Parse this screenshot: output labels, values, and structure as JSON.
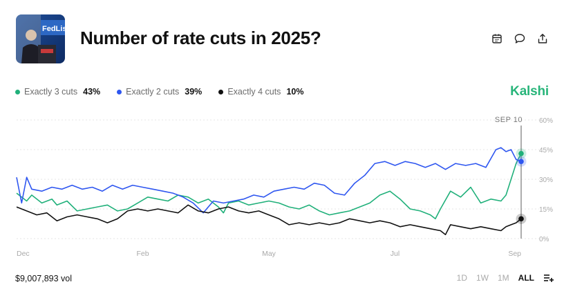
{
  "header": {
    "title": "Number of rate cuts in 2025?",
    "thumbnail_text": "FedListen",
    "actions": [
      {
        "name": "calendar-icon"
      },
      {
        "name": "comment-icon"
      },
      {
        "name": "share-icon"
      }
    ]
  },
  "brand": "Kalshi",
  "colors": {
    "green": "#20b07a",
    "blue": "#2e56f0",
    "black": "#111111",
    "brand": "#28b57a"
  },
  "legend": [
    {
      "name": "Exactly 3 cuts",
      "pct": "43%",
      "color": "#20b07a"
    },
    {
      "name": "Exactly 2 cuts",
      "pct": "39%",
      "color": "#2e56f0"
    },
    {
      "name": "Exactly 4 cuts",
      "pct": "10%",
      "color": "#111111"
    }
  ],
  "footer": {
    "volume": "$9,007,893 vol",
    "ranges": [
      "1D",
      "1W",
      "1M",
      "ALL"
    ],
    "active_range": "ALL"
  },
  "chart_data": {
    "type": "line",
    "date_marker": "SEP 10",
    "x_ticks": [
      "Dec",
      "Feb",
      "May",
      "Jul",
      "Sep"
    ],
    "x_tick_positions": [
      0,
      0.25,
      0.5,
      0.75,
      1.0
    ],
    "yticks": [
      "60%",
      "45%",
      "30%",
      "15%",
      "0%"
    ],
    "ylim": [
      0,
      60
    ],
    "series": [
      {
        "name": "Exactly 3 cuts",
        "color": "#20b07a",
        "x": [
          0,
          0.02,
          0.03,
          0.05,
          0.07,
          0.08,
          0.1,
          0.12,
          0.14,
          0.16,
          0.18,
          0.2,
          0.22,
          0.24,
          0.26,
          0.28,
          0.3,
          0.32,
          0.34,
          0.36,
          0.38,
          0.4,
          0.41,
          0.42,
          0.44,
          0.46,
          0.48,
          0.5,
          0.52,
          0.54,
          0.56,
          0.58,
          0.6,
          0.62,
          0.64,
          0.66,
          0.68,
          0.7,
          0.72,
          0.74,
          0.76,
          0.78,
          0.8,
          0.82,
          0.83,
          0.84,
          0.86,
          0.88,
          0.9,
          0.92,
          0.94,
          0.96,
          0.97,
          0.98,
          0.99,
          1.0
        ],
        "values": [
          23,
          19,
          22,
          18,
          20,
          17,
          19,
          14,
          15,
          16,
          17,
          14,
          15,
          18,
          21,
          20,
          19,
          22,
          21,
          18,
          20,
          16,
          13,
          18,
          19,
          17,
          18,
          19,
          18,
          16,
          15,
          17,
          14,
          12,
          13,
          14,
          16,
          18,
          22,
          24,
          20,
          15,
          14,
          12,
          10,
          15,
          24,
          21,
          26,
          18,
          20,
          19,
          22,
          30,
          38,
          43
        ]
      },
      {
        "name": "Exactly 2 cuts",
        "color": "#2e56f0",
        "x": [
          0,
          0.01,
          0.02,
          0.03,
          0.05,
          0.07,
          0.09,
          0.11,
          0.13,
          0.15,
          0.17,
          0.19,
          0.21,
          0.23,
          0.25,
          0.27,
          0.29,
          0.31,
          0.33,
          0.35,
          0.37,
          0.39,
          0.41,
          0.43,
          0.45,
          0.47,
          0.49,
          0.51,
          0.53,
          0.55,
          0.57,
          0.59,
          0.61,
          0.63,
          0.65,
          0.67,
          0.69,
          0.71,
          0.73,
          0.75,
          0.77,
          0.79,
          0.81,
          0.83,
          0.85,
          0.87,
          0.89,
          0.91,
          0.93,
          0.95,
          0.96,
          0.97,
          0.98,
          0.99,
          1.0
        ],
        "values": [
          31,
          18,
          31,
          25,
          24,
          26,
          25,
          27,
          25,
          26,
          24,
          27,
          25,
          27,
          26,
          25,
          24,
          23,
          21,
          18,
          13,
          19,
          18,
          19,
          20,
          22,
          21,
          24,
          25,
          26,
          25,
          28,
          27,
          23,
          22,
          28,
          32,
          38,
          39,
          37,
          39,
          38,
          36,
          38,
          35,
          38,
          37,
          38,
          36,
          45,
          46,
          44,
          45,
          40,
          39
        ]
      },
      {
        "name": "Exactly 4 cuts",
        "color": "#111111",
        "x": [
          0,
          0.02,
          0.04,
          0.06,
          0.08,
          0.1,
          0.12,
          0.14,
          0.16,
          0.18,
          0.2,
          0.22,
          0.24,
          0.26,
          0.28,
          0.3,
          0.32,
          0.34,
          0.36,
          0.38,
          0.4,
          0.42,
          0.44,
          0.46,
          0.48,
          0.5,
          0.52,
          0.54,
          0.56,
          0.58,
          0.6,
          0.62,
          0.64,
          0.66,
          0.68,
          0.7,
          0.72,
          0.74,
          0.76,
          0.78,
          0.8,
          0.82,
          0.84,
          0.85,
          0.86,
          0.88,
          0.9,
          0.92,
          0.94,
          0.96,
          0.97,
          0.98,
          0.99,
          1.0
        ],
        "values": [
          16,
          14,
          12,
          13,
          9,
          11,
          12,
          11,
          10,
          8,
          10,
          14,
          15,
          14,
          15,
          14,
          13,
          17,
          14,
          13,
          15,
          16,
          14,
          13,
          14,
          12,
          10,
          7,
          8,
          7,
          8,
          7,
          8,
          10,
          9,
          8,
          9,
          8,
          6,
          7,
          6,
          5,
          4,
          2,
          7,
          6,
          5,
          6,
          5,
          4,
          6,
          7,
          8,
          10
        ]
      }
    ]
  }
}
